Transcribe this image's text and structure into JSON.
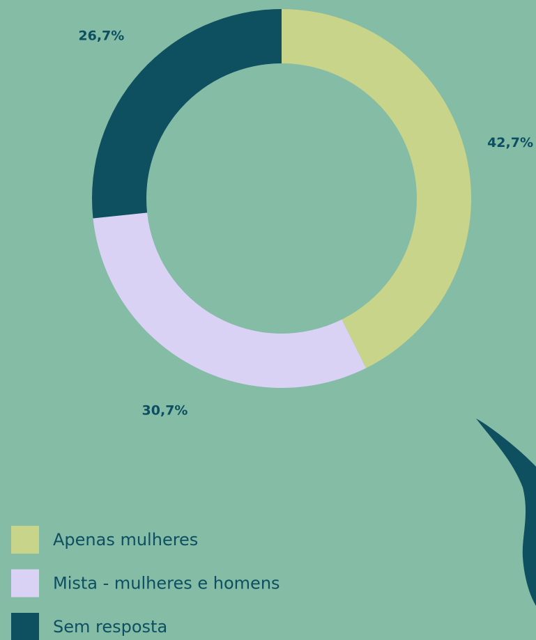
{
  "chart_data": {
    "type": "donut",
    "categories": [
      "Apenas mulheres",
      "Mista - mulheres e homens",
      "Sem resposta"
    ],
    "values": [
      42.7,
      30.7,
      26.7
    ],
    "value_labels": [
      "42,7%",
      "30,7%",
      "26,7%"
    ],
    "colors": [
      "#c8d48a",
      "#d9d2f5",
      "#0e4f60"
    ]
  }
}
